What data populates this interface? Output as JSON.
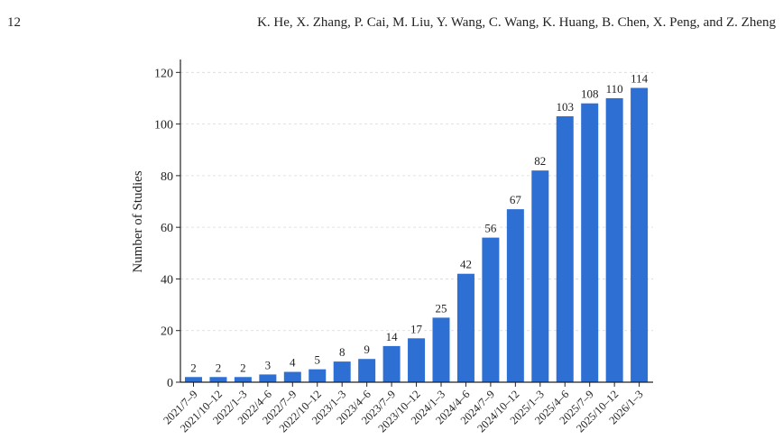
{
  "page": {
    "page_number": "12",
    "running_head": "K. He, X. Zhang, P. Cai, M. Liu, Y. Wang, C. Wang, K. Huang, B. Chen, X. Peng, and Z. Zheng"
  },
  "chart_data": {
    "type": "bar",
    "title": "",
    "xlabel": "",
    "ylabel": "Number of Studies",
    "ylim": [
      0,
      125
    ],
    "yticks": [
      0,
      20,
      40,
      60,
      80,
      100,
      120
    ],
    "grid": true,
    "bar_color": "#2e6fd3",
    "categories": [
      "2021/7–9",
      "2021/10–12",
      "2022/1–3",
      "2022/4–6",
      "2022/7–9",
      "2022/10–12",
      "2023/1–3",
      "2023/4–6",
      "2023/7–9",
      "2023/10–12",
      "2024/1–3",
      "2024/4–6",
      "2024/7–9",
      "2024/10–12",
      "2025/1–3",
      "2025/4–6",
      "2025/7–9",
      "2025/10–12",
      "2026/1–3"
    ],
    "values": [
      2,
      2,
      2,
      3,
      4,
      5,
      8,
      9,
      14,
      17,
      25,
      42,
      56,
      67,
      82,
      103,
      108,
      110,
      114
    ]
  }
}
